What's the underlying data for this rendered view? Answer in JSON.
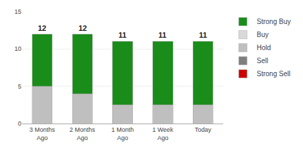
{
  "chart_data": {
    "type": "bar",
    "stacked": true,
    "categories": [
      "3 Months\nAgo",
      "2 Months\nAgo",
      "1 Month\nAgo",
      "1 Week\nAgo",
      "Today"
    ],
    "series": [
      {
        "name": "Strong Buy",
        "color": "#1a8c1a",
        "values": [
          7,
          8,
          8.5,
          8.5,
          8.5
        ]
      },
      {
        "name": "Buy",
        "color": "#d9d9d9",
        "values": [
          null,
          null,
          null,
          null,
          null
        ]
      },
      {
        "name": "Hold",
        "color": "#bfbfbf",
        "values": [
          5,
          4,
          2.5,
          2.5,
          2.5
        ]
      },
      {
        "name": "Sell",
        "color": "#7f7f7f",
        "values": [
          null,
          null,
          null,
          null,
          null
        ]
      },
      {
        "name": "Strong Sell",
        "color": "#cc0000",
        "values": [
          null,
          null,
          null,
          null,
          null
        ]
      }
    ],
    "totals": [
      12,
      12,
      11,
      11,
      11
    ],
    "ylim": [
      0,
      15
    ],
    "yticks": [
      0,
      5,
      10,
      15
    ],
    "grid": true,
    "legend": "right"
  }
}
